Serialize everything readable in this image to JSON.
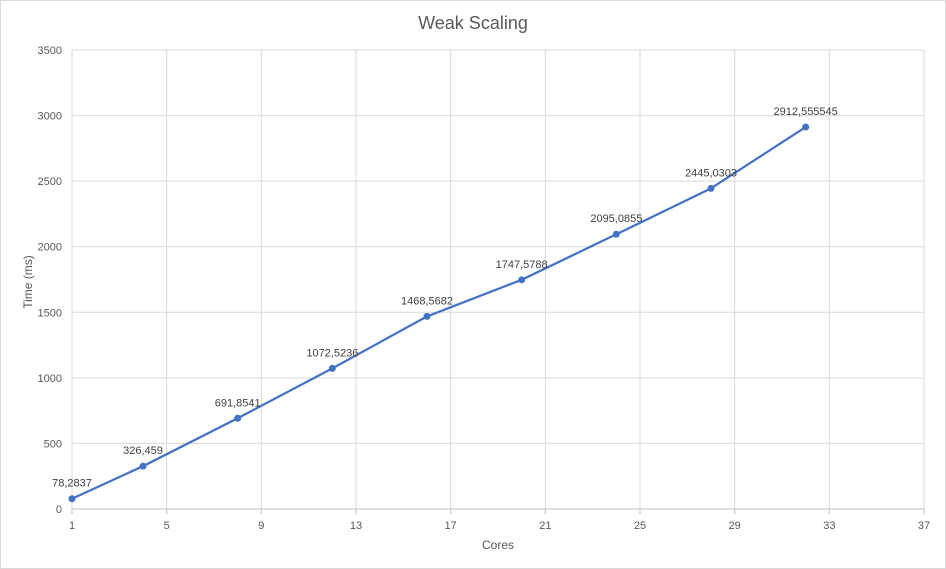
{
  "chart_data": {
    "type": "line",
    "title": "Weak Scaling",
    "xlabel": "Cores",
    "ylabel": "Time (ms)",
    "xlim": [
      1,
      37
    ],
    "ylim": [
      0,
      3500
    ],
    "x_ticks": [
      1,
      5,
      9,
      13,
      17,
      21,
      25,
      29,
      33,
      37
    ],
    "y_ticks": [
      0,
      500,
      1000,
      1500,
      2000,
      2500,
      3000,
      3500
    ],
    "grid": true,
    "legend": "none",
    "series": [
      {
        "color": "#4472c4",
        "points": [
          {
            "x": 1,
            "y": 78.2837,
            "label": "78,2837"
          },
          {
            "x": 4,
            "y": 326.459,
            "label": "326,459"
          },
          {
            "x": 8,
            "y": 691.8541,
            "label": "691,8541"
          },
          {
            "x": 12,
            "y": 1072.5236,
            "label": "1072,5236"
          },
          {
            "x": 16,
            "y": 1468.5682,
            "label": "1468,5682"
          },
          {
            "x": 20,
            "y": 1747.5788,
            "label": "1747,5788"
          },
          {
            "x": 24,
            "y": 2095.0855,
            "label": "2095,0855"
          },
          {
            "x": 28,
            "y": 2445.0303,
            "label": "2445,0303"
          },
          {
            "x": 32,
            "y": 2912.555545,
            "label": "2912,555545"
          }
        ]
      }
    ]
  }
}
